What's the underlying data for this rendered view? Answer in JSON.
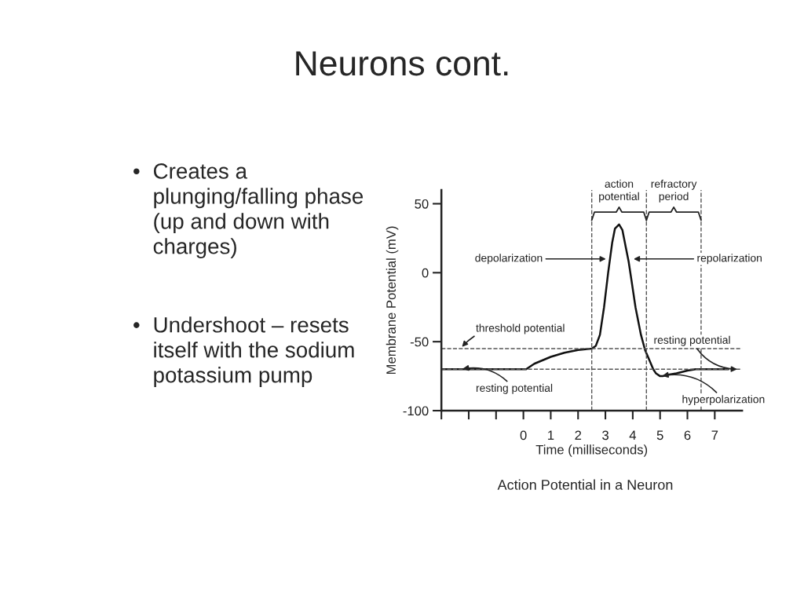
{
  "chart_data": {
    "type": "line",
    "title": "Neurons cont.",
    "xlabel": "Time (milliseconds)",
    "ylabel": "Membrane Potential (mV)",
    "series": [
      {
        "color": "#111111",
        "x": [
          -3,
          0,
          0.1,
          0.4,
          1,
          1.5,
          2,
          2.5,
          2.65,
          2.8,
          2.95,
          3.1,
          3.25,
          3.35,
          3.5,
          3.62,
          3.75,
          3.85,
          3.95,
          4.1,
          4.3,
          4.45,
          4.6,
          4.75,
          4.85,
          5.0,
          5.1,
          5.3,
          5.6,
          6.0,
          6.3,
          6.6,
          7.5
        ],
        "values": [
          -70,
          -70,
          -70,
          -66,
          -61,
          -58,
          -56,
          -55,
          -53,
          -45,
          -25,
          0,
          22,
          32,
          35,
          31,
          18,
          8,
          -5,
          -25,
          -45,
          -56,
          -63,
          -70,
          -73,
          -75,
          -75,
          -74,
          -73,
          -71,
          -70,
          -70,
          -70
        ]
      }
    ],
    "xlim": [
      -3,
      8
    ],
    "ylim": [
      -100,
      60
    ],
    "xticks": [
      {
        "value": -3,
        "label": null
      },
      {
        "value": -2,
        "label": null
      },
      {
        "value": -1,
        "label": null
      },
      0,
      1,
      2,
      3,
      4,
      5,
      6,
      7
    ],
    "yticks": [
      -100,
      -50,
      0,
      50
    ],
    "grid": false,
    "legend": false,
    "marker": "none",
    "line_style": "solid",
    "ref_lines": [
      {
        "axis": "y",
        "value": -55,
        "color": "#555555",
        "line_style": "dashed"
      },
      {
        "axis": "y",
        "value": -70,
        "color": "#555555",
        "line_style": "dashed"
      },
      {
        "axis": "x",
        "value": 2.5,
        "color": "#555555",
        "line_style": "dashed"
      },
      {
        "axis": "x",
        "value": 4.5,
        "color": "#555555",
        "line_style": "dashed"
      },
      {
        "axis": "x",
        "value": 6.5,
        "color": "#555555",
        "line_style": "dashed"
      }
    ],
    "annotations": [
      {
        "text": "depolarization",
        "x": 3.1,
        "y": 10
      },
      {
        "text": "repolarization",
        "x": 3.95,
        "y": 10
      },
      {
        "text": "threshold potential",
        "x": -2.3,
        "y": -55
      },
      {
        "text": "resting potential",
        "x": -2.3,
        "y": -70
      },
      {
        "text": "resting potential",
        "x": 7.9,
        "y": -70
      },
      {
        "text": "hyperpolarization",
        "x": 5.0,
        "y": -75
      },
      "Action Potential in a Neuron",
      "action\npotential",
      "refractory\nperiod",
      "•Creates a\nplunging/falling phase\n(up and down with\ncharges)",
      "•Undershoot – resets\nitself with the sodium\npotassium pump"
    ]
  }
}
